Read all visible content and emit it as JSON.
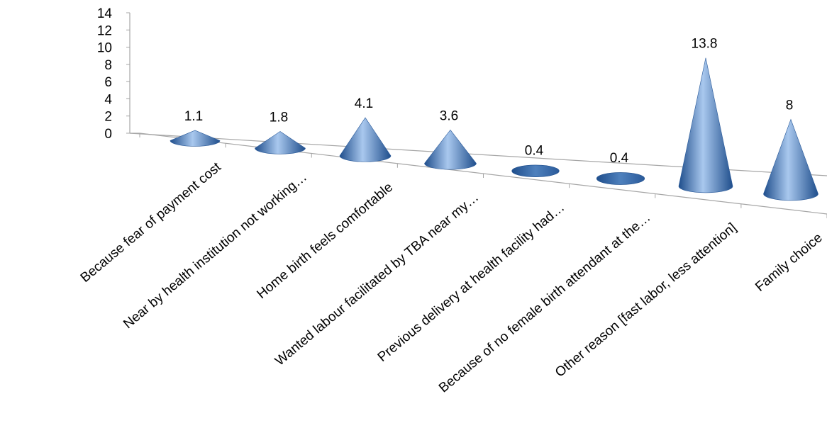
{
  "chart_data": {
    "type": "bar",
    "categories": [
      "Because fear of payment cost",
      "Near by health institution not working…",
      "Home birth feels comfortable",
      "Wanted labour facilitated by TBA near my…",
      "Previous delivery at health facility had…",
      "Because of no female birth attendant at the…",
      "Other reason [fast labor, less attention]",
      "Family choice"
    ],
    "values": [
      1.1,
      1.8,
      4.1,
      3.6,
      0.4,
      0.4,
      13.8,
      8
    ],
    "data_labels": [
      "1.1",
      "1.8",
      "4.1",
      "3.6",
      "0.4",
      "0.4",
      "13.8",
      "8"
    ],
    "y_ticks": [
      "0",
      "2",
      "4",
      "6",
      "8",
      "10",
      "12",
      "14"
    ],
    "ylim": [
      0,
      14
    ],
    "mark_shape": "3d-cone",
    "grid": false,
    "legend": "none",
    "colors": {
      "cone_light": "#a9c8ee",
      "cone_mid": "#4f81bd",
      "cone_dark": "#1f4e8c",
      "axis": "#a6a6a6",
      "text": "#000000"
    }
  }
}
